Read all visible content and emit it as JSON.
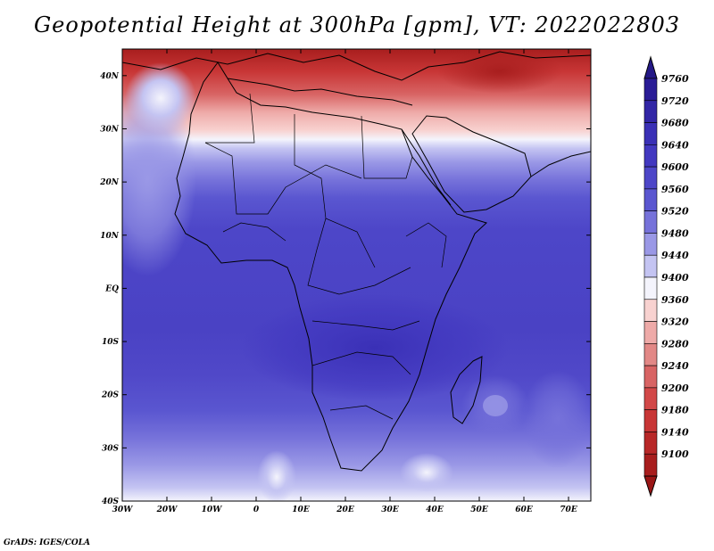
{
  "title": "Geopotential Height at 300hPa [gpm], VT: 2022022803",
  "credit": "GrADS: IGES/COLA",
  "map": {
    "lon_range": [
      -30,
      75
    ],
    "lat_range": [
      -40,
      45
    ],
    "lon_ticks": [
      {
        "value": -30,
        "label": "30W"
      },
      {
        "value": -20,
        "label": "20W"
      },
      {
        "value": -10,
        "label": "10W"
      },
      {
        "value": 0,
        "label": "0"
      },
      {
        "value": 10,
        "label": "10E"
      },
      {
        "value": 20,
        "label": "20E"
      },
      {
        "value": 30,
        "label": "30E"
      },
      {
        "value": 40,
        "label": "40E"
      },
      {
        "value": 50,
        "label": "50E"
      },
      {
        "value": 60,
        "label": "60E"
      },
      {
        "value": 70,
        "label": "70E"
      }
    ],
    "lat_ticks": [
      {
        "value": 40,
        "label": "40N"
      },
      {
        "value": 30,
        "label": "30N"
      },
      {
        "value": 20,
        "label": "20N"
      },
      {
        "value": 10,
        "label": "10N"
      },
      {
        "value": 0,
        "label": "EQ"
      },
      {
        "value": -10,
        "label": "10S"
      },
      {
        "value": -20,
        "label": "20S"
      },
      {
        "value": -30,
        "label": "30S"
      },
      {
        "value": -40,
        "label": "40S"
      }
    ]
  },
  "colorbar": {
    "levels": [
      {
        "label": "9760",
        "color": "#2a1c96"
      },
      {
        "label": "9720",
        "color": "#3226a6"
      },
      {
        "label": "9680",
        "color": "#3a30b6"
      },
      {
        "label": "9640",
        "color": "#4238c0"
      },
      {
        "label": "9600",
        "color": "#4d46c8"
      },
      {
        "label": "9560",
        "color": "#5a56d0"
      },
      {
        "label": "9520",
        "color": "#7672da"
      },
      {
        "label": "9480",
        "color": "#9a98e6"
      },
      {
        "label": "9440",
        "color": "#c4c4f2"
      },
      {
        "label": "9400",
        "color": "#f4f4fc"
      },
      {
        "label": "9360",
        "color": "#f8d2d0"
      },
      {
        "label": "9320",
        "color": "#eeaaa8"
      },
      {
        "label": "9280",
        "color": "#e28886"
      },
      {
        "label": "9240",
        "color": "#d86464"
      },
      {
        "label": "9200",
        "color": "#d24848"
      },
      {
        "label": "9180",
        "color": "#c83636"
      },
      {
        "label": "9140",
        "color": "#b82828"
      },
      {
        "label": "9100",
        "color": "#a81e1e"
      }
    ],
    "top_arrow_color": "#241886",
    "bottom_arrow_color": "#9a1616"
  }
}
